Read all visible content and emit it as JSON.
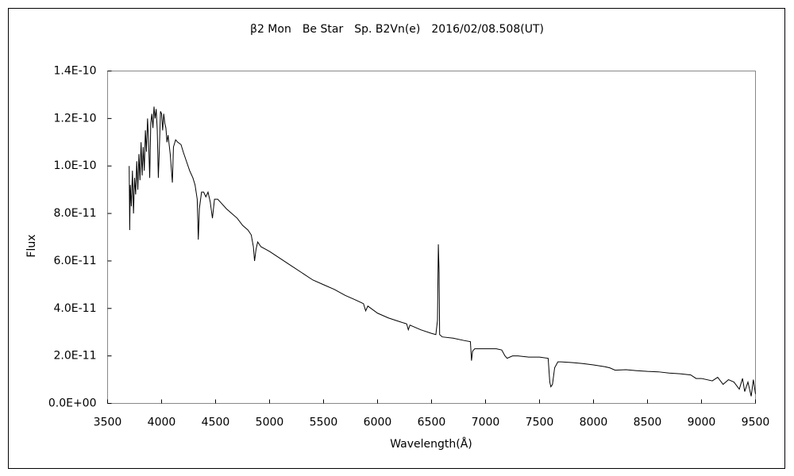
{
  "chart_data": {
    "type": "line",
    "title": "β2 Mon　Be Star　Sp. B2Vn(e)　2016/02/08.508(UT)",
    "x_label": "Wavelength(Å)",
    "y_label": "Flux",
    "color": "#000000",
    "xlim": [
      3500,
      9500
    ],
    "xticks": [
      3500,
      4000,
      4500,
      5000,
      5500,
      6000,
      6500,
      7000,
      7500,
      8000,
      8500,
      9000,
      9500
    ],
    "ylim": [
      0,
      1.4e-10
    ],
    "yticks": [
      {
        "value": 0,
        "label": "0.0E+00"
      },
      {
        "value": 2e-11,
        "label": "2.0E-11"
      },
      {
        "value": 4e-11,
        "label": "4.0E-11"
      },
      {
        "value": 6e-11,
        "label": "6.0E-11"
      },
      {
        "value": 8e-11,
        "label": "8.0E-11"
      },
      {
        "value": 1e-10,
        "label": "1.0E-10"
      },
      {
        "value": 1.2e-10,
        "label": "1.2E-10"
      },
      {
        "value": 1.4e-10,
        "label": "1.4E-10"
      }
    ],
    "x": [
      3700,
      3705,
      3710,
      3720,
      3730,
      3740,
      3750,
      3760,
      3770,
      3780,
      3790,
      3800,
      3810,
      3820,
      3830,
      3840,
      3850,
      3860,
      3870,
      3880,
      3890,
      3900,
      3910,
      3920,
      3930,
      3940,
      3950,
      3960,
      3970,
      3980,
      3990,
      4000,
      4010,
      4020,
      4030,
      4040,
      4050,
      4060,
      4080,
      4100,
      4110,
      4130,
      4150,
      4180,
      4200,
      4230,
      4260,
      4290,
      4310,
      4330,
      4340,
      4350,
      4370,
      4390,
      4410,
      4430,
      4450,
      4471,
      4490,
      4520,
      4560,
      4600,
      4650,
      4700,
      4750,
      4800,
      4830,
      4850,
      4861,
      4875,
      4890,
      4920,
      4960,
      5000,
      5100,
      5200,
      5300,
      5400,
      5500,
      5600,
      5700,
      5800,
      5870,
      5890,
      5910,
      6000,
      6100,
      6200,
      6270,
      6285,
      6300,
      6400,
      6500,
      6540,
      6555,
      6563,
      6570,
      6575,
      6600,
      6700,
      6800,
      6860,
      6870,
      6880,
      6900,
      7000,
      7100,
      7150,
      7180,
      7200,
      7250,
      7300,
      7400,
      7500,
      7580,
      7595,
      7605,
      7620,
      7640,
      7670,
      7700,
      7800,
      7900,
      8000,
      8100,
      8150,
      8200,
      8300,
      8400,
      8500,
      8600,
      8700,
      8800,
      8900,
      8950,
      9000,
      9050,
      9100,
      9150,
      9200,
      9250,
      9300,
      9350,
      9380,
      9400,
      9430,
      9460,
      9480,
      9500
    ],
    "values": [
      1e-10,
      7.3e-11,
      9.2e-11,
      8.3e-11,
      9.8e-11,
      8e-11,
      9.5e-11,
      8.8e-11,
      1.02e-10,
      9e-11,
      1.05e-10,
      9.4e-11,
      1.1e-10,
      9.6e-11,
      1.08e-10,
      9.8e-11,
      1.15e-10,
      1.06e-10,
      1.2e-10,
      1.1e-10,
      9.5e-11,
      1.18e-10,
      1.22e-10,
      1.16e-10,
      1.25e-10,
      1.2e-10,
      1.24e-10,
      1.15e-10,
      9.5e-11,
      1.08e-10,
      1.23e-10,
      1.22e-10,
      1.15e-10,
      1.22e-10,
      1.18e-10,
      1.16e-10,
      1.1e-10,
      1.13e-10,
      1.05e-10,
      9.3e-11,
      1.08e-10,
      1.11e-10,
      1.1e-10,
      1.09e-10,
      1.06e-10,
      1.02e-10,
      9.8e-11,
      9.5e-11,
      9.2e-11,
      8.6e-11,
      6.9e-11,
      8.2e-11,
      8.9e-11,
      8.9e-11,
      8.7e-11,
      8.9e-11,
      8.5e-11,
      7.8e-11,
      8.6e-11,
      8.6e-11,
      8.4e-11,
      8.2e-11,
      8e-11,
      7.8e-11,
      7.5e-11,
      7.3e-11,
      7.1e-11,
      6.6e-11,
      6e-11,
      6.5e-11,
      6.8e-11,
      6.6e-11,
      6.5e-11,
      6.4e-11,
      6.1e-11,
      5.8e-11,
      5.5e-11,
      5.2e-11,
      5e-11,
      4.8e-11,
      4.55e-11,
      4.35e-11,
      4.2e-11,
      3.9e-11,
      4.1e-11,
      3.8e-11,
      3.6e-11,
      3.45e-11,
      3.35e-11,
      3.1e-11,
      3.3e-11,
      3.1e-11,
      2.95e-11,
      2.9e-11,
      3.5e-11,
      6.7e-11,
      5.5e-11,
      2.9e-11,
      2.8e-11,
      2.75e-11,
      2.65e-11,
      2.6e-11,
      1.8e-11,
      2.2e-11,
      2.3e-11,
      2.3e-11,
      2.3e-11,
      2.25e-11,
      2e-11,
      1.9e-11,
      2e-11,
      2e-11,
      1.95e-11,
      1.95e-11,
      1.9e-11,
      9e-12,
      7e-12,
      8e-12,
      1.5e-11,
      1.75e-11,
      1.75e-11,
      1.72e-11,
      1.68e-11,
      1.62e-11,
      1.55e-11,
      1.5e-11,
      1.4e-11,
      1.42e-11,
      1.38e-11,
      1.35e-11,
      1.33e-11,
      1.28e-11,
      1.25e-11,
      1.2e-11,
      1.05e-11,
      1.05e-11,
      1e-11,
      9.5e-12,
      1.1e-11,
      8e-12,
      1e-11,
      9e-12,
      6e-12,
      1.05e-11,
      5e-12,
      9e-12,
      3e-12,
      1e-11,
      4e-12
    ]
  }
}
